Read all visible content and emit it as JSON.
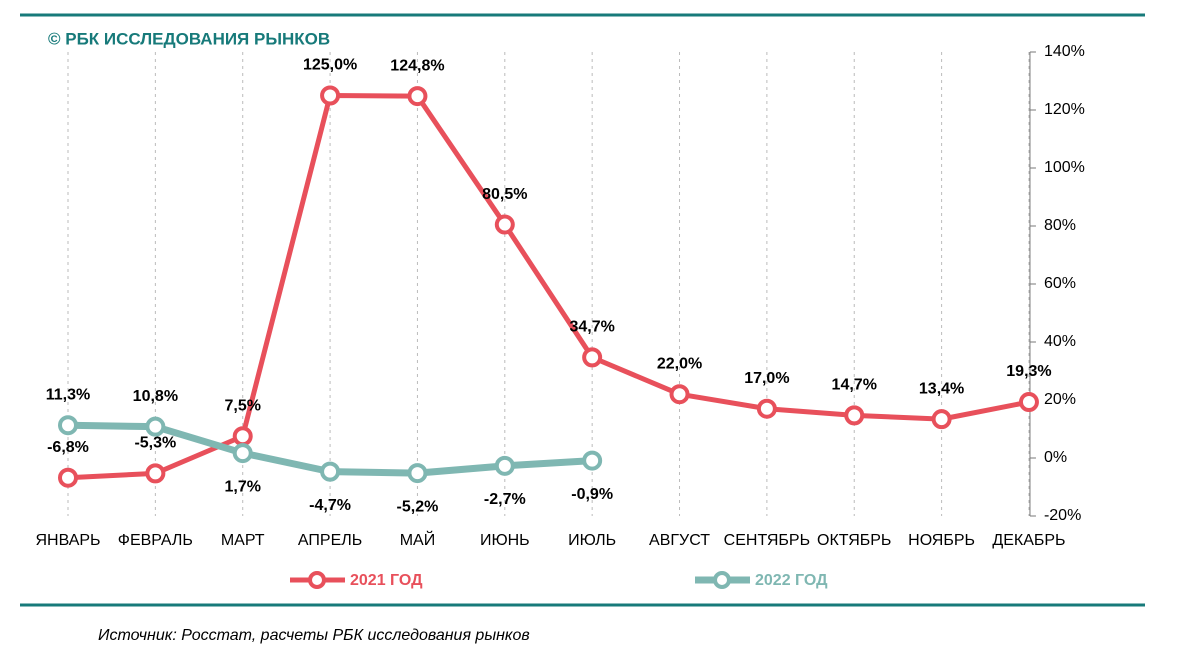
{
  "chart_data": {
    "type": "line",
    "title": "© РБК ИССЛЕДОВАНИЯ РЫНКОВ",
    "source": "Источник: Росстат, расчеты РБК исследования рынков",
    "categories": [
      "ЯНВАРЬ",
      "ФЕВРАЛЬ",
      "МАРТ",
      "АПРЕЛЬ",
      "МАЙ",
      "ИЮНЬ",
      "ИЮЛЬ",
      "АВГУСТ",
      "СЕНТЯБРЬ",
      "ОКТЯБРЬ",
      "НОЯБРЬ",
      "ДЕКАБРЬ"
    ],
    "series": [
      {
        "name": "2021 ГОД",
        "color": "#e8505b",
        "values": [
          -6.8,
          -5.3,
          7.5,
          125.0,
          124.8,
          80.5,
          34.7,
          22.0,
          17.0,
          14.7,
          13.4,
          19.3
        ],
        "value_labels": [
          "-6,8%",
          "-5,3%",
          "7,5%",
          "125,0%",
          "124,8%",
          "80,5%",
          "34,7%",
          "22,0%",
          "17,0%",
          "14,7%",
          "13,4%",
          "19,3%"
        ]
      },
      {
        "name": "2022 ГОД",
        "color": "#7fb7b2",
        "values": [
          11.3,
          10.8,
          1.7,
          -4.7,
          -5.2,
          -2.7,
          -0.9,
          null,
          null,
          null,
          null,
          null
        ],
        "value_labels": [
          "11,3%",
          "10,8%",
          "1,7%",
          "-4,7%",
          "-5,2%",
          "-2,7%",
          "-0,9%",
          null,
          null,
          null,
          null,
          null
        ]
      }
    ],
    "ylim": [
      -20,
      140
    ],
    "yticks": [
      {
        "value": -20,
        "label": "-20%"
      },
      {
        "value": 0,
        "label": "0%"
      },
      {
        "value": 20,
        "label": "20%"
      },
      {
        "value": 40,
        "label": "40%"
      },
      {
        "value": 60,
        "label": "60%"
      },
      {
        "value": 80,
        "label": "80%"
      },
      {
        "value": 100,
        "label": "100%"
      },
      {
        "value": 120,
        "label": "120%"
      },
      {
        "value": 140,
        "label": "140%"
      }
    ],
    "y_axis_side": "right",
    "grid": "x"
  }
}
